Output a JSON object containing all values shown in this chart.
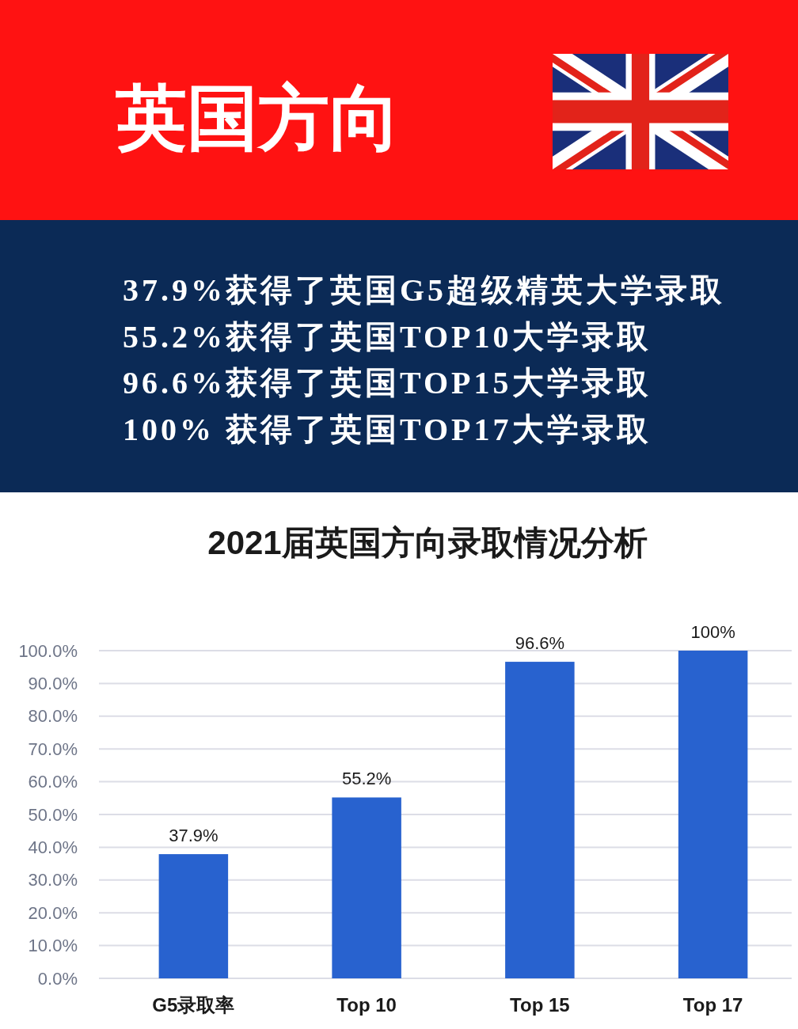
{
  "chart_data": {
    "type": "bar",
    "title": "2021届英国方向录取情况分析",
    "annotations": [
      "英国方向",
      "37.9%获得了英国G5超级精英大学录取",
      "55.2%获得了英国TOP10大学录取",
      "96.6%获得了英国TOP15大学录取",
      "100% 获得了英国TOP17大学录取"
    ],
    "categories": [
      "G5录取率",
      "Top 10",
      "Top 15",
      "Top 17"
    ],
    "values": [
      37.9,
      55.2,
      96.6,
      100
    ],
    "value_labels": [
      "37.9%",
      "55.2%",
      "96.6%",
      "100%"
    ],
    "color": "#2862cf",
    "ylim": [
      0,
      100
    ],
    "yticks": [
      {
        "value": 0,
        "label": "0.0%"
      },
      {
        "value": 10,
        "label": "10.0%"
      },
      {
        "value": 20,
        "label": "20.0%"
      },
      {
        "value": 30,
        "label": "30.0%"
      },
      {
        "value": 40,
        "label": "40.0%"
      },
      {
        "value": 50,
        "label": "50.0%"
      },
      {
        "value": 60,
        "label": "60.0%"
      },
      {
        "value": 70,
        "label": "70.0%"
      },
      {
        "value": 80,
        "label": "80.0%"
      },
      {
        "value": 90,
        "label": "90.0%"
      },
      {
        "value": 100,
        "label": "100.0%"
      }
    ],
    "grid": "y"
  }
}
